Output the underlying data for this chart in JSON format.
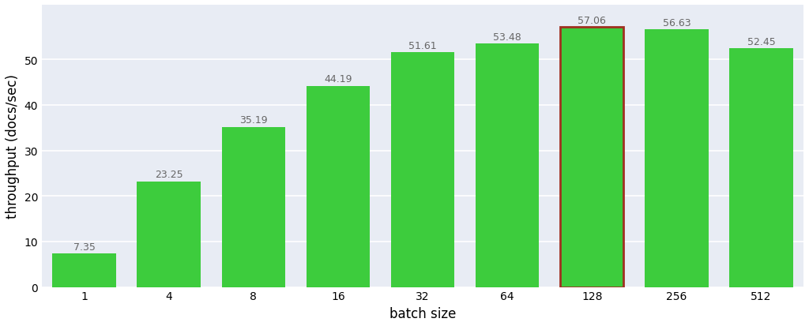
{
  "categories": [
    "1",
    "4",
    "8",
    "16",
    "32",
    "64",
    "128",
    "256",
    "512"
  ],
  "values": [
    7.35,
    23.25,
    35.19,
    44.19,
    51.61,
    53.48,
    57.06,
    56.63,
    52.45
  ],
  "bar_color": "#3dcc3d",
  "highlight_index": 6,
  "highlight_edge_color": "#a03020",
  "highlight_edge_width": 2.0,
  "normal_edge_color": "none",
  "xlabel": "batch size",
  "ylabel": "throughput (docs/sec)",
  "ylim": [
    0,
    62
  ],
  "yticks": [
    0,
    10,
    20,
    30,
    40,
    50
  ],
  "plot_background_color": "#e8ecf4",
  "figure_background": "#ffffff",
  "xlabel_fontsize": 12,
  "ylabel_fontsize": 12,
  "tick_fontsize": 10,
  "annotation_fontsize": 9,
  "annotation_color": "#666666",
  "bar_width": 0.75
}
